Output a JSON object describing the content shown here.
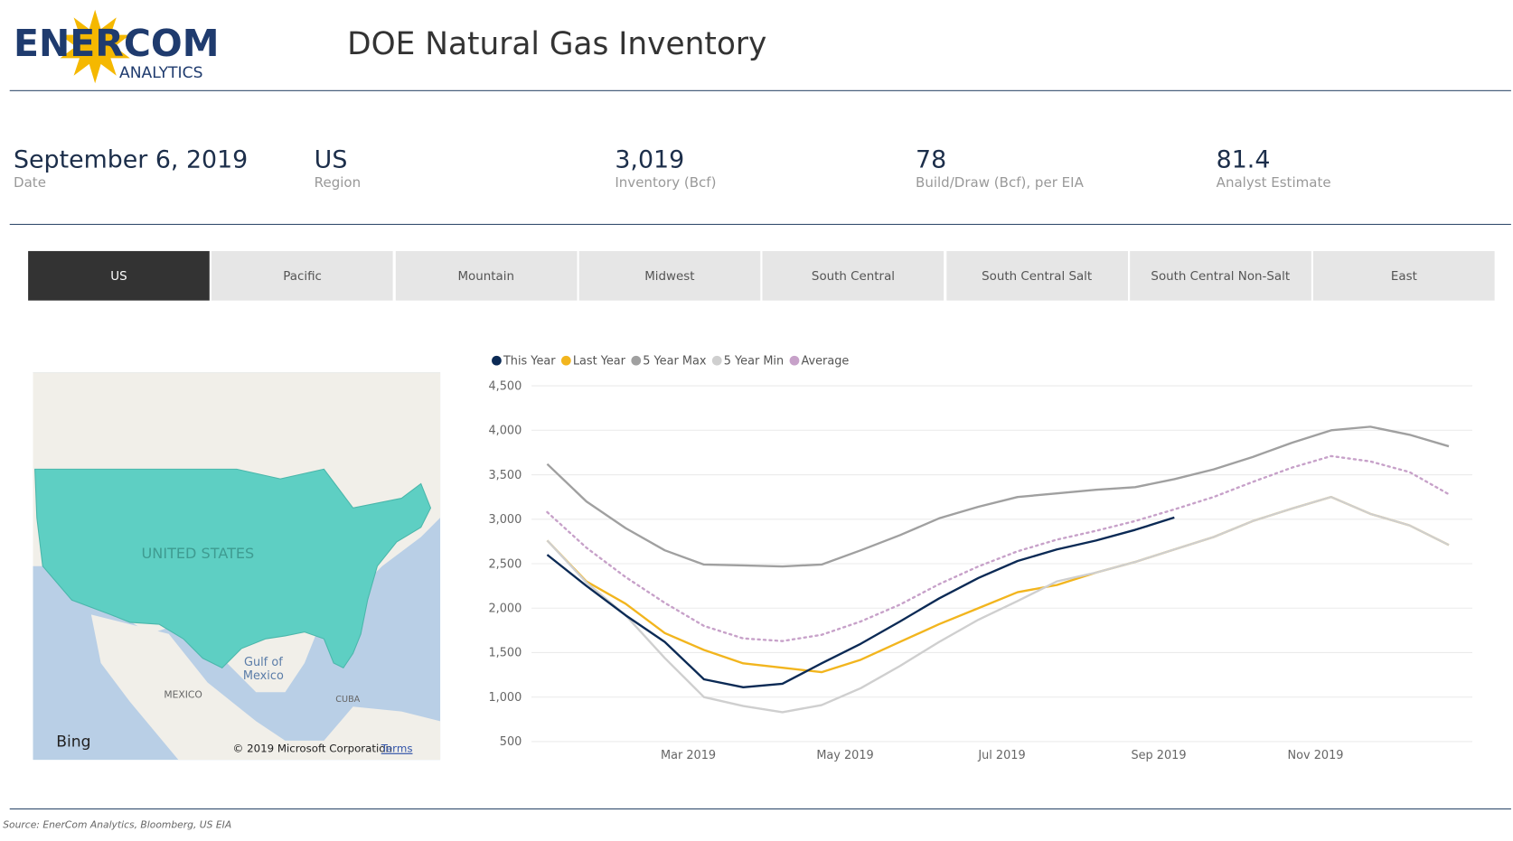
{
  "header": {
    "logo": "ENERCOM",
    "logo_sub": "ANALYTICS",
    "title": "DOE Natural Gas Inventory"
  },
  "kpis": [
    {
      "value": "September 6, 2019",
      "label": "Date"
    },
    {
      "value": "US",
      "label": "Region"
    },
    {
      "value": "3,019",
      "label": "Inventory (Bcf)"
    },
    {
      "value": 78,
      "label": "Build/Draw (Bcf), per EIA"
    },
    {
      "value": 81.4,
      "label": "Analyst Estimate"
    }
  ],
  "tabs": [
    "US",
    "Pacific",
    "Mountain",
    "Midwest",
    "South Central",
    "South Central Salt",
    "South Central Non-Salt",
    "East"
  ],
  "map": {
    "country": "UNITED STATES",
    "gulf": "Gulf of Mexico",
    "mexico": "MEXICO",
    "cuba": "CUBA",
    "brand": "Bing",
    "copyright": "© 2019 Microsoft Corporation",
    "terms": "Terms"
  },
  "chart_data": {
    "type": "line",
    "x": [
      1.2,
      1.7,
      2.2,
      2.7,
      3.2,
      3.7,
      4.2,
      4.7,
      5.2,
      5.7,
      6.2,
      6.7,
      7.2,
      7.7,
      8.2,
      8.7,
      9.2,
      9.7,
      10.2,
      10.7,
      11.2,
      11.7,
      12.2,
      12.7
    ],
    "xlim": [
      1,
      13
    ],
    "xticks": [
      {
        "value": 3,
        "label": "Mar 2019"
      },
      {
        "value": 5,
        "label": "May 2019"
      },
      {
        "value": 7,
        "label": "Jul 2019"
      },
      {
        "value": 9,
        "label": "Sep 2019"
      },
      {
        "value": 11,
        "label": "Nov 2019"
      }
    ],
    "ylim": [
      500,
      4500
    ],
    "yticks": [
      500,
      {
        "value": 1000,
        "label": "1,000"
      },
      {
        "value": 1500,
        "label": "1,500"
      },
      {
        "value": 2000,
        "label": "2,000"
      },
      {
        "value": 2500,
        "label": "2,500"
      },
      {
        "value": 3000,
        "label": "3,000"
      },
      {
        "value": 3500,
        "label": "3,500"
      },
      {
        "value": 4000,
        "label": "4,000"
      },
      {
        "value": 4500,
        "label": "4,500"
      }
    ],
    "grid": true,
    "series": [
      {
        "name": "5 Year Max",
        "color": "#a0a0a0",
        "style": "solid",
        "values": [
          3620,
          3200,
          2900,
          2650,
          2490,
          2480,
          2470,
          2490,
          2650,
          2820,
          3010,
          3140,
          3250,
          3290,
          3330,
          3360,
          3450,
          3560,
          3700,
          3860,
          4000,
          4040,
          3950,
          3820
        ]
      },
      {
        "name": "Last Year",
        "color": "#f2b51e",
        "style": "solid",
        "values": [
          2760,
          2300,
          2050,
          1720,
          1530,
          1380,
          1330,
          1280,
          1420,
          1620,
          1820,
          2000,
          2180,
          2260,
          2400,
          2520,
          2660,
          2800,
          2980,
          3120,
          3250,
          3060,
          2930,
          2710
        ]
      },
      {
        "name": "5 Year Min",
        "color": "#cfcfcf",
        "style": "solid",
        "values": [
          2760,
          2290,
          1920,
          1440,
          1000,
          900,
          830,
          910,
          1100,
          1350,
          1620,
          1870,
          2080,
          2300,
          2400,
          2520,
          2660,
          2800,
          2980,
          3120,
          3250,
          3060,
          2930,
          2710
        ]
      },
      {
        "name": "Average",
        "color": "#c7a1c9",
        "style": "dotted",
        "values": [
          3080,
          2680,
          2350,
          2060,
          1800,
          1660,
          1630,
          1700,
          1850,
          2040,
          2270,
          2470,
          2640,
          2770,
          2870,
          2980,
          3110,
          3250,
          3420,
          3580,
          3710,
          3650,
          3530,
          3280
        ]
      },
      {
        "name": "This Year",
        "color": "#0b2a55",
        "style": "solid",
        "values": [
          2600,
          2250,
          1920,
          1620,
          1200,
          1110,
          1150,
          1380,
          1600,
          1850,
          2110,
          2340,
          2530,
          2660,
          2760,
          2880,
          3019,
          null,
          null,
          null,
          null,
          null,
          null,
          null
        ]
      }
    ],
    "legend_order": [
      "This Year",
      "Last Year",
      "5 Year Max",
      "5 Year Min",
      "Average"
    ]
  },
  "source": "Source: EnerCom Analytics, Bloomberg, US EIA"
}
